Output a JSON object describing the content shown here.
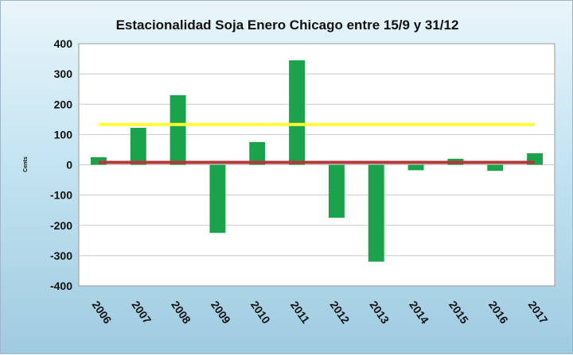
{
  "chart_data": {
    "type": "bar",
    "title": "Estacionalidad Soja Enero Chicago entre 15/9 y 31/12",
    "xlabel": "",
    "ylabel": "Cents",
    "categories": [
      "2006",
      "2007",
      "2008",
      "2009",
      "2010",
      "2011",
      "2012",
      "2013",
      "2014",
      "2015",
      "2016",
      "2017"
    ],
    "series": [
      {
        "values": [
          25,
          122,
          230,
          -225,
          75,
          345,
          -175,
          -320,
          -18,
          20,
          -20,
          38
        ],
        "color": "#1aa34a"
      }
    ],
    "reference_lines": [
      {
        "value": 133,
        "color": "#ffff33"
      },
      {
        "value": 8,
        "color": "#b03a3a"
      }
    ],
    "ylim": [
      -400,
      400
    ],
    "yticks": [
      400,
      300,
      200,
      100,
      0,
      -100,
      -200,
      -300,
      -400
    ],
    "grid": true,
    "legend": "none",
    "colors": {
      "plot_background": "#ffffff",
      "gridline": "#c9c9c9",
      "axis": "#7f7f7f",
      "frame_top": "#e9f5fb",
      "frame_bottom": "#9fcbe0"
    }
  }
}
